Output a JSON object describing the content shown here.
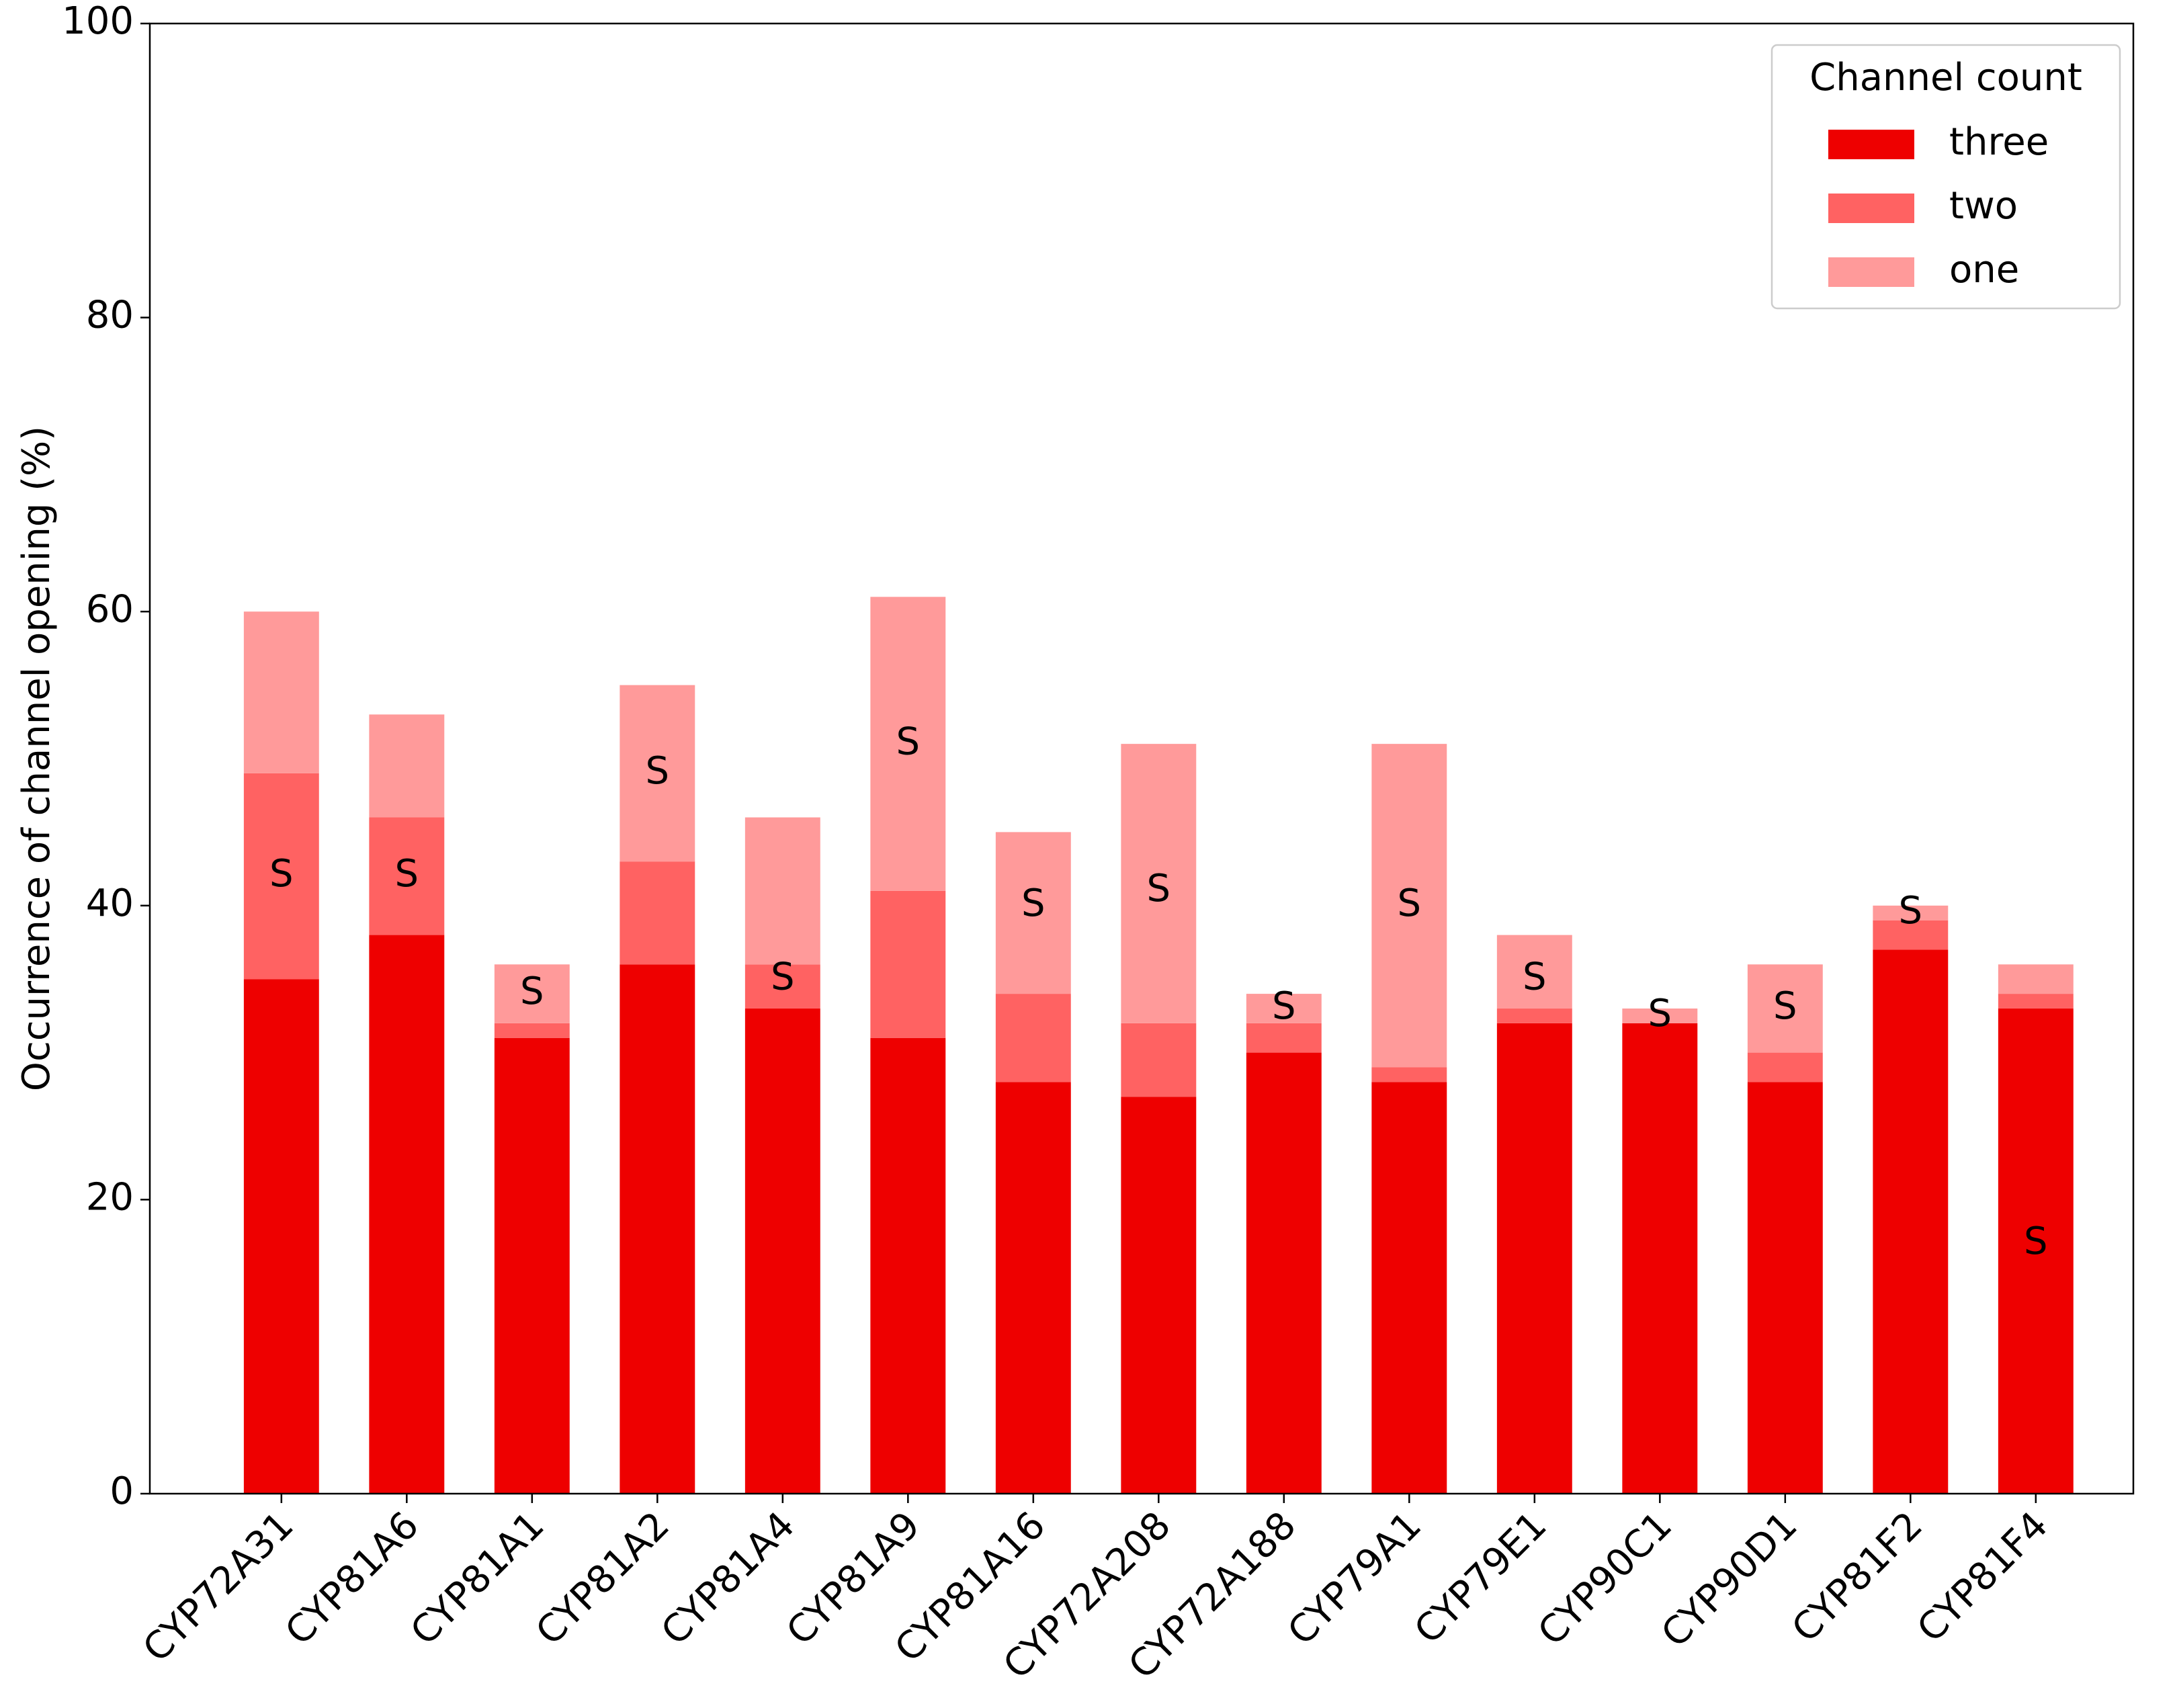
{
  "chart_data": {
    "type": "stacked_bar",
    "ylabel": "Occurrence of channel opening (%)",
    "categories": [
      "CYP72A31",
      "CYP81A6",
      "CYP81A1",
      "CYP81A2",
      "CYP81A4",
      "CYP81A9",
      "CYP81A16",
      "CYP72A208",
      "CYP72A188",
      "CYP79A1",
      "CYP79E1",
      "CYP90C1",
      "CYP90D1",
      "CYP81F2",
      "CYP81F4"
    ],
    "series": [
      {
        "name": "three",
        "color": "#ee0000",
        "values": [
          35,
          38,
          31,
          36,
          33,
          31,
          28,
          27,
          30,
          28,
          32,
          32,
          28,
          37,
          33
        ]
      },
      {
        "name": "two",
        "color": "#ff6262",
        "values": [
          14,
          8,
          1,
          7,
          3,
          10,
          6,
          5,
          2,
          1,
          1,
          0,
          2,
          2,
          1
        ]
      },
      {
        "name": "one",
        "color": "#ff9a9a",
        "values": [
          11,
          7,
          4,
          12,
          10,
          20,
          11,
          19,
          2,
          22,
          5,
          1,
          6,
          1,
          2
        ]
      }
    ],
    "annotations": [
      {
        "text": "S",
        "x": "CYP72A31",
        "y": 42
      },
      {
        "text": "S",
        "x": "CYP81A6",
        "y": 42
      },
      {
        "text": "S",
        "x": "CYP81A1",
        "y": 34
      },
      {
        "text": "S",
        "x": "CYP81A2",
        "y": 49
      },
      {
        "text": "S",
        "x": "CYP81A4",
        "y": 35
      },
      {
        "text": "S",
        "x": "CYP81A9",
        "y": 51
      },
      {
        "text": "S",
        "x": "CYP81A16",
        "y": 40
      },
      {
        "text": "S",
        "x": "CYP72A208",
        "y": 41
      },
      {
        "text": "S",
        "x": "CYP72A188",
        "y": 33
      },
      {
        "text": "S",
        "x": "CYP79A1",
        "y": 40
      },
      {
        "text": "S",
        "x": "CYP79E1",
        "y": 35
      },
      {
        "text": "S",
        "x": "CYP90C1",
        "y": 32.5
      },
      {
        "text": "S",
        "x": "CYP90D1",
        "y": 33
      },
      {
        "text": "S",
        "x": "CYP81F2",
        "y": 39.5
      },
      {
        "text": "S",
        "x": "CYP81F4",
        "y": 17
      }
    ],
    "ylim": [
      0,
      100
    ],
    "yticks": [
      0,
      20,
      40,
      60,
      80,
      100
    ],
    "legend_title": "Channel count",
    "legend_loc": "upper right",
    "grid": false
  }
}
